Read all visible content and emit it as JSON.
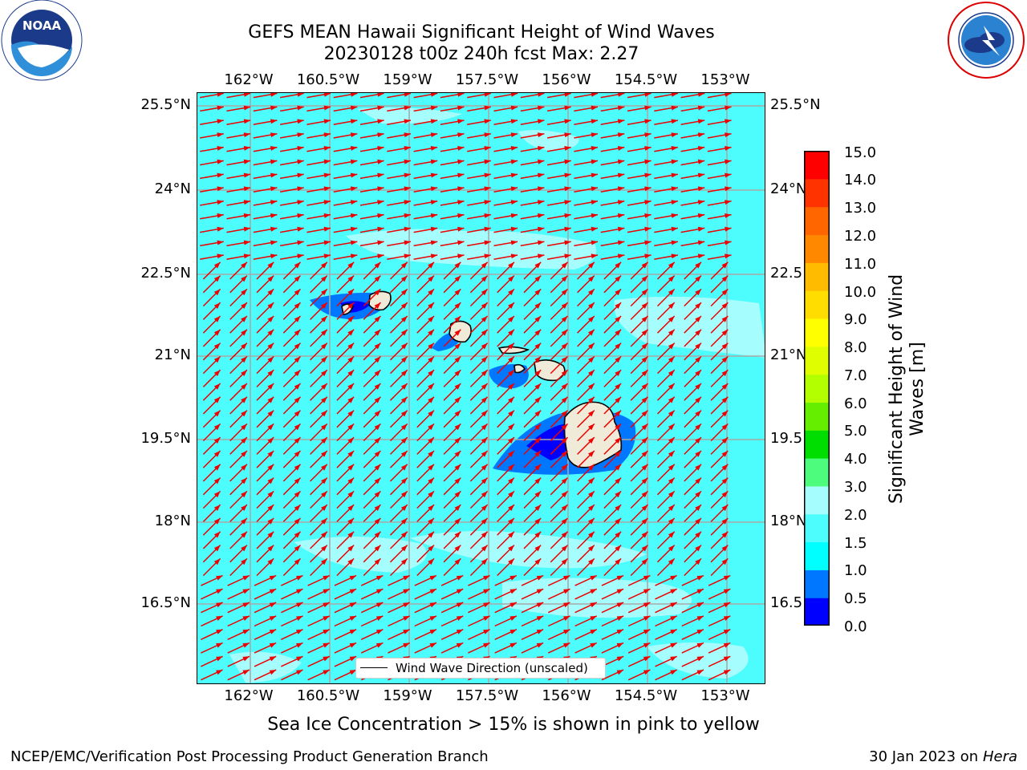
{
  "header": {
    "title_line1": "GEFS MEAN Hawaii Significant Height of Wind Waves",
    "title_line2": "20230128 t00z 240h fcst   Max: 2.27"
  },
  "logos": {
    "noaa_text": "NOAA",
    "noaa_ring_text": "NATIONAL OCEANIC AND ATMOSPHERIC ADMINISTRATION · U.S. DEPARTMENT OF COMMERCE",
    "nws_ring_text": "NATIONAL WEATHER SERVICE"
  },
  "map": {
    "lon_labels": [
      "162°W",
      "160.5°W",
      "159°W",
      "157.5°W",
      "156°W",
      "154.5°W",
      "153°W"
    ],
    "lat_labels_left": [
      "25.5°N",
      "24°N",
      "22.5°N",
      "21°N",
      "19.5°N",
      "18°N",
      "16.5°N"
    ],
    "lat_labels_right": [
      "25.5°N",
      "24°N",
      "22.5",
      "21°N",
      "19.5",
      "18°N",
      "16.5"
    ],
    "grid": true,
    "background_color": "#4dfdfd",
    "arrow_color": "#ee0000",
    "coast_color": "#000000",
    "land_color": "#efebd8",
    "legend_text": "Wind Wave Direction (unscaled)"
  },
  "colorbar": {
    "label": "Significant Height of Wind Waves [m]",
    "label_line1": "Significant Height of Wind",
    "label_line2": "Waves [m]",
    "ticks": [
      "15.0",
      "14.0",
      "13.0",
      "12.0",
      "11.0",
      "10.0",
      "9.0",
      "8.0",
      "7.0",
      "6.0",
      "5.0",
      "4.0",
      "3.0",
      "2.0",
      "1.5",
      "1.0",
      "0.5",
      "0.0"
    ],
    "colors": [
      "#0000ff",
      "#0077ff",
      "#00ffff",
      "#4dfdfd",
      "#a6fdfd",
      "#4dfc7c",
      "#00dd00",
      "#66ee00",
      "#b3ff00",
      "#dfff00",
      "#ffff00",
      "#ffdd00",
      "#ffbb00",
      "#ff8800",
      "#ff6600",
      "#ff3300",
      "#ff0000"
    ]
  },
  "note": "Sea Ice Concentration > 15% is shown in pink to yellow",
  "footer": {
    "left": "NCEP/EMC/Verification Post Processing Product Generation Branch",
    "right_date": "30 Jan 2023 on ",
    "right_host": "Hera"
  }
}
